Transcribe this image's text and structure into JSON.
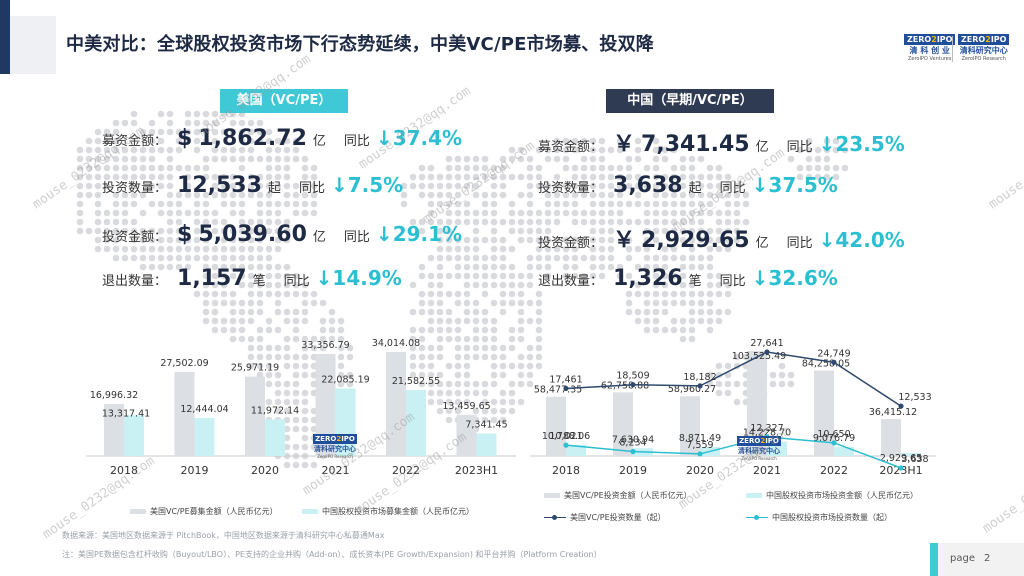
{
  "title": "中美对比：全球股权投资市场下行态势延续，中美VC/PE市场募、投双降",
  "logos": [
    {
      "mark_a": "ZERO",
      "mark_b": "2",
      "mark_c": "IPO",
      "cn": "清 科 创 业",
      "en": "ZeroIPO Ventures"
    },
    {
      "mark_a": "ZERO",
      "mark_b": "2",
      "mark_c": "IPO",
      "cn": "清科研究中心",
      "en": "ZeroIPO Research"
    }
  ],
  "us": {
    "tag": "美国（VC/PE）",
    "rows": [
      {
        "label": "募资金额：",
        "currency": "$",
        "value": "1,862.72",
        "unit": "亿",
        "yoy": "同比",
        "arrow": "↓",
        "pct": "37.4%"
      },
      {
        "label": "投资数量：",
        "currency": "",
        "value": "12,533",
        "unit": "起",
        "yoy": "同比",
        "arrow": "↓",
        "pct": "7.5%"
      },
      {
        "label": "投资金额：",
        "currency": "$",
        "value": "5,039.60",
        "unit": "亿",
        "yoy": "同比",
        "arrow": "↓",
        "pct": "29.1%"
      },
      {
        "label": "退出数量：",
        "currency": "",
        "value": "1,157",
        "unit": "笔",
        "yoy": "同比",
        "arrow": "↓",
        "pct": "14.9%"
      }
    ]
  },
  "cn": {
    "tag": "中国（早期/VC/PE）",
    "rows": [
      {
        "label": "募资金额：",
        "currency": "￥",
        "value": "7,341.45",
        "unit": "亿",
        "yoy": "同比",
        "arrow": "↓",
        "pct": "23.5%"
      },
      {
        "label": "投资数量：",
        "currency": "",
        "value": "3,638",
        "unit": "起",
        "yoy": "同比",
        "arrow": "↓",
        "pct": "37.5%"
      },
      {
        "label": "投资金额：",
        "currency": "￥",
        "value": "2,929.65",
        "unit": "亿",
        "yoy": "同比",
        "arrow": "↓",
        "pct": "42.0%"
      },
      {
        "label": "退出数量：",
        "currency": "",
        "value": "1,326",
        "unit": "笔",
        "yoy": "同比",
        "arrow": "↓",
        "pct": "32.6%"
      }
    ]
  },
  "mini_logo": {
    "mark_a": "ZERO",
    "mark_b": "2",
    "mark_c": "IPO",
    "cn": "清科研究中心",
    "en": "ZeroIPO Research"
  },
  "watermark": "mouse_0232@qq.com",
  "chart_data": [
    {
      "type": "bar",
      "categories": [
        "2018",
        "2019",
        "2020",
        "2021",
        "2022",
        "2023H1"
      ],
      "series": [
        {
          "name": "美国VC/PE募集金额（人民币亿元）",
          "values": [
            16996.32,
            27502.09,
            25971.19,
            33356.79,
            34014.08,
            13459.65
          ],
          "labels": [
            "16,996.32",
            "27,502.09",
            "25,971.19",
            "33,356.79",
            "34,014.08",
            "13,459.65"
          ],
          "color": "#dcdfe4"
        },
        {
          "name": "中国股权投资市场募集金额（人民币亿元）",
          "values": [
            13317.41,
            12444.04,
            11972.14,
            22085.19,
            21582.55,
            7341.45
          ],
          "labels": [
            "13,317.41",
            "12,444.04",
            "11,972.14",
            "22,085.19",
            "21,582.55",
            "7,341.45"
          ],
          "color": "#c9f0f3"
        }
      ]
    },
    {
      "type": "bar+line",
      "categories": [
        "2018",
        "2019",
        "2020",
        "2021",
        "2022",
        "2023H1"
      ],
      "bar_series": [
        {
          "name": "美国VC/PE投资金额（人民币亿元）",
          "values": [
            58477.35,
            62758.88,
            58960.27,
            103525.49,
            84258.05,
            36415.12
          ],
          "labels": [
            "58,477.35",
            "62,758.88",
            "58,960.27",
            "103,525.49",
            "84,258.05",
            "36,415.12"
          ],
          "color": "#dcdfe4"
        },
        {
          "name": "中国股权投资市场投资金额（人民币亿元）",
          "values": [
            10788.06,
            7630.94,
            8871.49,
            14228.7,
            9076.79,
            2929.65
          ],
          "labels": [
            "10,788.06",
            "7,630.94",
            "8,871.49",
            "14,228.70",
            "9,076.79",
            "2,929.65"
          ],
          "color": "#c9f0f3"
        }
      ],
      "line_series": [
        {
          "name": "美国VC/PE投资数量（起）",
          "values": [
            17461,
            18509,
            18182,
            27641,
            24749,
            12533
          ],
          "labels": [
            "17,461",
            "18,509",
            "18,182",
            "27,641",
            "24,749",
            "12,533"
          ],
          "color": "#2f4a6e"
        },
        {
          "name": "中国股权投资市场投资数量（起）",
          "values": [
            10021,
            8234,
            7559,
            12327,
            10650,
            3638
          ],
          "labels": [
            "10,021",
            "8,234",
            "7,559",
            "12,327",
            "10,650",
            "3,638"
          ],
          "color": "#2bbfd1"
        }
      ]
    }
  ],
  "notes": {
    "source": "数据来源：美国地区数据来源于 PitchBook，中国地区数据来源于清科研究中心私募通Max",
    "remark": "注：美国PE数据包含杠杆收购（Buyout/LBO）、PE支持的企业并购（Add-on）、成长资本(PE Growth/Expansion) 和平台并购（Platform Creation）"
  },
  "page": {
    "label": "page",
    "number": "2"
  }
}
